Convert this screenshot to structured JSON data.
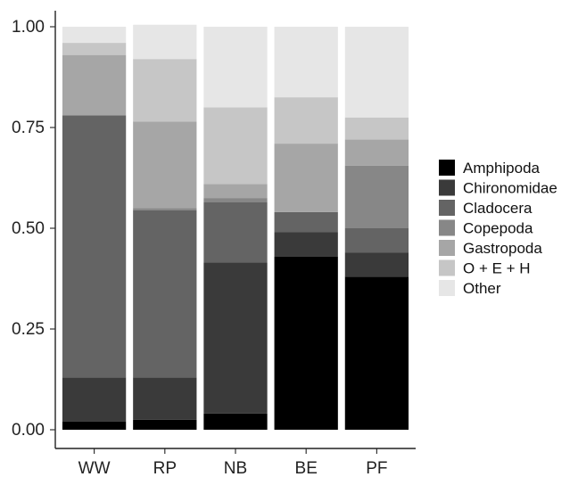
{
  "chart_data": {
    "type": "bar",
    "stacked": true,
    "categories": [
      "WW",
      "RP",
      "NB",
      "BE",
      "PF"
    ],
    "ylim": [
      0,
      1
    ],
    "yticks": [
      0.0,
      0.25,
      0.5,
      0.75,
      1.0
    ],
    "ytick_labels": [
      "0.00",
      "0.25",
      "0.50",
      "0.75",
      "1.00"
    ],
    "xlabel": "",
    "ylabel": "",
    "grid": false,
    "legend_position": "right",
    "series": [
      {
        "name": "Amphipoda",
        "color": "#000000",
        "values": [
          0.02,
          0.025,
          0.04,
          0.43,
          0.38
        ]
      },
      {
        "name": "Chironomidae",
        "color": "#3a3a3a",
        "values": [
          0.11,
          0.105,
          0.375,
          0.06,
          0.06
        ]
      },
      {
        "name": "Cladocera",
        "color": "#646464",
        "values": [
          0.65,
          0.415,
          0.15,
          0.05,
          0.06
        ]
      },
      {
        "name": "Copepoda",
        "color": "#878787",
        "values": [
          0.0,
          0.005,
          0.01,
          0.0,
          0.155
        ]
      },
      {
        "name": "Gastropoda",
        "color": "#a6a6a6",
        "values": [
          0.15,
          0.215,
          0.035,
          0.17,
          0.065
        ]
      },
      {
        "name": "O + E + H",
        "color": "#c6c6c6",
        "values": [
          0.03,
          0.155,
          0.19,
          0.115,
          0.055
        ]
      },
      {
        "name": "Other",
        "color": "#e6e6e6",
        "values": [
          0.04,
          0.085,
          0.2,
          0.175,
          0.225
        ]
      }
    ]
  }
}
